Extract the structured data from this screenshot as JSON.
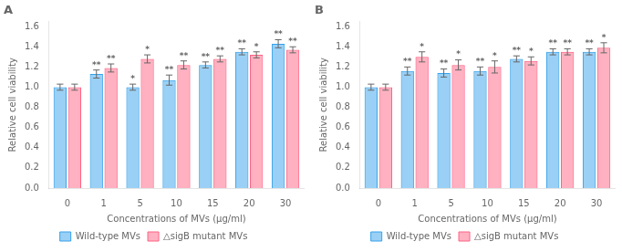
{
  "chart_data": [
    {
      "type": "bar",
      "title": "A",
      "xlabel": "Concentrations of MVs (μg/ml)",
      "ylabel": "Relative cell viability",
      "categories": [
        "0",
        "1",
        "5",
        "10",
        "15",
        "20",
        "30"
      ],
      "series": [
        {
          "name": "Wild-type MVs",
          "values": [
            1.0,
            1.13,
            1.0,
            1.07,
            1.22,
            1.35,
            1.43
          ],
          "errors": [
            0.03,
            0.04,
            0.03,
            0.05,
            0.03,
            0.03,
            0.04
          ],
          "annotations": [
            null,
            "**",
            "*",
            "**",
            "**",
            "**",
            "**"
          ]
        },
        {
          "name": "△sigB mutant MVs",
          "values": [
            1.0,
            1.19,
            1.28,
            1.22,
            1.28,
            1.32,
            1.37
          ],
          "errors": [
            0.03,
            0.04,
            0.04,
            0.04,
            0.03,
            0.03,
            0.03
          ],
          "annotations": [
            null,
            "**",
            "*",
            "**",
            "**",
            "*",
            "**"
          ]
        }
      ],
      "ylim": [
        0,
        1.65
      ],
      "yticks": [
        {
          "value": 0,
          "label": "0.0"
        },
        0.2,
        0.4,
        0.6,
        0.8,
        {
          "value": 1.0,
          "label": "1.0"
        },
        1.2,
        1.4,
        1.6
      ],
      "grid": false,
      "legend": "bottom"
    },
    {
      "type": "bar",
      "title": "B",
      "xlabel": "Concentrations of MVs (μg/ml)",
      "ylabel": "Relative cell viability",
      "categories": [
        "0",
        "1",
        "5",
        "10",
        "15",
        "20",
        "30"
      ],
      "series": [
        {
          "name": "Wild-type MVs",
          "values": [
            1.0,
            1.16,
            1.14,
            1.16,
            1.28,
            1.35,
            1.35
          ],
          "errors": [
            0.03,
            0.04,
            0.04,
            0.04,
            0.03,
            0.03,
            0.03
          ],
          "annotations": [
            null,
            "**",
            "**",
            "**",
            "**",
            "**",
            "**"
          ]
        },
        {
          "name": "△sigB mutant MVs",
          "values": [
            1.0,
            1.3,
            1.22,
            1.2,
            1.26,
            1.35,
            1.39
          ],
          "errors": [
            0.03,
            0.05,
            0.05,
            0.06,
            0.04,
            0.03,
            0.05
          ],
          "annotations": [
            null,
            "*",
            "*",
            "*",
            "*",
            "**",
            "*"
          ]
        }
      ],
      "ylim": [
        0,
        1.65
      ],
      "yticks": [
        {
          "value": 0,
          "label": "0.0"
        },
        0.2,
        0.4,
        0.6,
        0.8,
        {
          "value": 1.0,
          "label": "1.0"
        },
        1.2,
        1.4,
        1.6
      ],
      "grid": false,
      "legend": "bottom"
    }
  ]
}
